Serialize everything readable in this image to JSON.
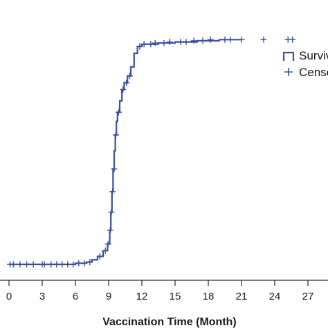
{
  "chart_data": {
    "type": "line",
    "title": "",
    "xlabel": "Vaccination Time (Month)",
    "ylabel": "",
    "xlim": [
      0,
      27
    ],
    "ylim": [
      0,
      1
    ],
    "x_ticks": [
      0,
      3,
      6,
      9,
      12,
      15,
      18,
      21,
      24,
      27
    ],
    "x_tick_labels": [
      "0",
      "3",
      "6",
      "9",
      "12",
      "15",
      "18",
      "21",
      "24",
      "27"
    ],
    "grid": false,
    "legend_position": "top-right",
    "colors": {
      "series": "#3a4fa0",
      "axis": "#333333"
    },
    "legend": [
      {
        "label": "Surviv",
        "symbol": "step-line-icon"
      },
      {
        "label": "Cense",
        "symbol": "plus-icon"
      }
    ],
    "series": [
      {
        "type": "step",
        "points": [
          [
            0,
            0.0
          ],
          [
            6.0,
            0.005
          ],
          [
            7.0,
            0.01
          ],
          [
            7.5,
            0.02
          ],
          [
            8.0,
            0.035
          ],
          [
            8.5,
            0.06
          ],
          [
            8.9,
            0.09
          ],
          [
            9.1,
            0.15
          ],
          [
            9.2,
            0.23
          ],
          [
            9.3,
            0.32
          ],
          [
            9.4,
            0.42
          ],
          [
            9.5,
            0.5
          ],
          [
            9.6,
            0.57
          ],
          [
            9.7,
            0.63
          ],
          [
            9.8,
            0.67
          ],
          [
            10.0,
            0.72
          ],
          [
            10.2,
            0.77
          ],
          [
            10.4,
            0.8
          ],
          [
            10.7,
            0.83
          ],
          [
            11.0,
            0.87
          ],
          [
            11.3,
            0.93
          ],
          [
            11.6,
            0.96
          ],
          [
            12.0,
            0.97
          ],
          [
            13.5,
            0.975
          ],
          [
            15.0,
            0.98
          ],
          [
            17.0,
            0.985
          ],
          [
            19.0,
            0.99
          ],
          [
            21.0,
            0.99
          ]
        ]
      },
      {
        "type": "censored",
        "points": [
          [
            0.1,
            0.0
          ],
          [
            0.4,
            0.0
          ],
          [
            1.0,
            0.0
          ],
          [
            1.6,
            0.0
          ],
          [
            2.2,
            0.0
          ],
          [
            3.0,
            0.0
          ],
          [
            3.2,
            0.0
          ],
          [
            3.8,
            0.0
          ],
          [
            4.3,
            0.0
          ],
          [
            4.8,
            0.0
          ],
          [
            5.3,
            0.0
          ],
          [
            5.8,
            0.0
          ],
          [
            6.3,
            0.005
          ],
          [
            6.8,
            0.005
          ],
          [
            7.3,
            0.01
          ],
          [
            8.2,
            0.035
          ],
          [
            8.7,
            0.06
          ],
          [
            8.95,
            0.09
          ],
          [
            9.15,
            0.15
          ],
          [
            9.25,
            0.23
          ],
          [
            9.35,
            0.32
          ],
          [
            9.5,
            0.42
          ],
          [
            9.65,
            0.57
          ],
          [
            9.9,
            0.67
          ],
          [
            10.3,
            0.77
          ],
          [
            10.6,
            0.8
          ],
          [
            10.9,
            0.83
          ],
          [
            11.8,
            0.96
          ],
          [
            12.2,
            0.97
          ],
          [
            12.8,
            0.97
          ],
          [
            13.2,
            0.975
          ],
          [
            14.0,
            0.975
          ],
          [
            14.5,
            0.98
          ],
          [
            15.5,
            0.98
          ],
          [
            16.0,
            0.98
          ],
          [
            16.7,
            0.985
          ],
          [
            17.5,
            0.985
          ],
          [
            18.2,
            0.99
          ],
          [
            19.5,
            0.99
          ],
          [
            20.0,
            0.99
          ],
          [
            21.0,
            0.99
          ],
          [
            23.0,
            0.99
          ],
          [
            25.2,
            0.99
          ],
          [
            25.6,
            0.99
          ]
        ]
      }
    ]
  }
}
